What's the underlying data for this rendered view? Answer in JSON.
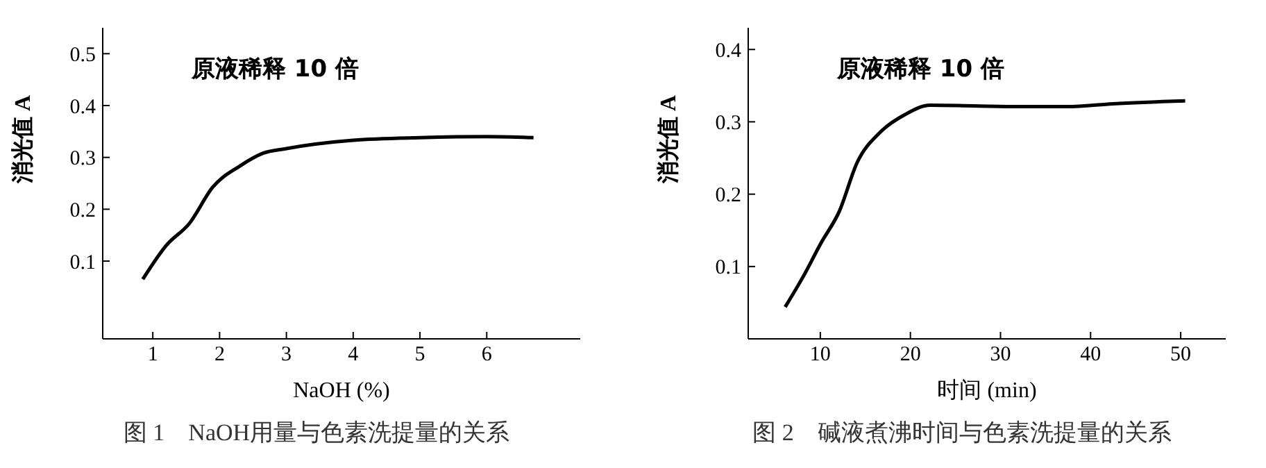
{
  "chart_data": [
    {
      "type": "line",
      "title": "图 1　NaOH用量与色素洗提量的关系",
      "xlabel": "NaOH (%)",
      "ylabel": "消光值 A",
      "annotations": [
        "原液稀释 10 倍"
      ],
      "x": [
        0.85,
        1.2,
        1.55,
        1.9,
        2.3,
        2.65,
        3.0,
        4.0,
        5.0,
        6.0,
        6.7
      ],
      "series": [
        {
          "color": "#000000",
          "values": [
            0.065,
            0.13,
            0.173,
            0.243,
            0.283,
            0.308,
            0.317,
            0.333,
            0.338,
            0.34,
            0.338
          ]
        }
      ],
      "xlim": [
        0.25,
        7.4
      ],
      "xticks": [
        1,
        2,
        3,
        4,
        5,
        6
      ],
      "ylim": [
        -0.05,
        0.55
      ],
      "yticks": [
        {
          "value": 0.1,
          "label": "0.1"
        },
        {
          "value": 0.2,
          "label": "0.2"
        },
        {
          "value": 0.3,
          "label": "0.3"
        },
        {
          "value": 0.4,
          "label": "0.4"
        },
        {
          "value": 0.5,
          "label": "0.5"
        }
      ],
      "grid": false,
      "legend": false
    },
    {
      "type": "line",
      "title": "图 2　碱液煮沸时间与色素洗提量的关系",
      "xlabel": "时间 (min)",
      "ylabel": "消光值 A",
      "annotations": [
        "原液稀释 10 倍"
      ],
      "x": [
        6.1,
        8.1,
        10.1,
        12.1,
        14.1,
        16.6,
        19.4,
        22.2,
        27,
        32.2,
        37.4,
        42.5,
        50.5
      ],
      "series": [
        {
          "color": "#000000",
          "values": [
            0.044,
            0.086,
            0.133,
            0.176,
            0.244,
            0.285,
            0.31,
            0.323,
            0.322,
            0.321,
            0.321,
            0.325,
            0.329
          ]
        }
      ],
      "xlim": [
        2,
        55
      ],
      "xticks": [
        10,
        20,
        30,
        40,
        50
      ],
      "ylim": [
        0,
        0.43
      ],
      "yticks": [
        {
          "value": 0.1,
          "label": "0.1"
        },
        {
          "value": 0.2,
          "label": "0.2"
        },
        {
          "value": 0.3,
          "label": "0.3"
        },
        {
          "value": 0.4,
          "label": "0.4"
        }
      ],
      "grid": false,
      "legend": false
    }
  ]
}
